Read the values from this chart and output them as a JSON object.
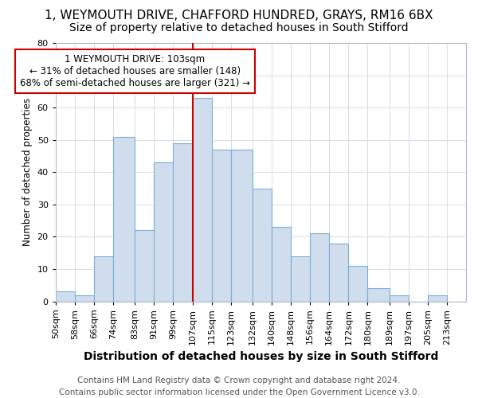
{
  "title_line1": "1, WEYMOUTH DRIVE, CHAFFORD HUNDRED, GRAYS, RM16 6BX",
  "title_line2": "Size of property relative to detached houses in South Stifford",
  "xlabel": "Distribution of detached houses by size in South Stifford",
  "ylabel": "Number of detached properties",
  "footer_line1": "Contains HM Land Registry data © Crown copyright and database right 2024.",
  "footer_line2": "Contains public sector information licensed under the Open Government Licence v3.0.",
  "bin_labels": [
    "50sqm",
    "58sqm",
    "66sqm",
    "74sqm",
    "83sqm",
    "91sqm",
    "99sqm",
    "107sqm",
    "115sqm",
    "123sqm",
    "132sqm",
    "140sqm",
    "148sqm",
    "156sqm",
    "164sqm",
    "172sqm",
    "180sqm",
    "189sqm",
    "197sqm",
    "205sqm",
    "213sqm"
  ],
  "bar_heights": [
    3,
    2,
    14,
    51,
    22,
    43,
    49,
    63,
    47,
    47,
    35,
    23,
    14,
    21,
    18,
    11,
    4,
    2,
    0,
    2,
    0
  ],
  "bar_color": "#cfdded",
  "bar_edge_color": "#7aaed6",
  "bin_edges": [
    50,
    58,
    66,
    74,
    83,
    91,
    99,
    107,
    115,
    123,
    132,
    140,
    148,
    156,
    164,
    172,
    180,
    189,
    197,
    205,
    213,
    221
  ],
  "highlight_label": "1 WEYMOUTH DRIVE: 103sqm",
  "annotation_line1": "← 31% of detached houses are smaller (148)",
  "annotation_line2": "68% of semi-detached houses are larger (321) →",
  "ylim": [
    0,
    80
  ],
  "yticks": [
    0,
    10,
    20,
    30,
    40,
    50,
    60,
    70,
    80
  ],
  "grid_color": "#d5dce8",
  "red_line_color": "#cc0000",
  "annotation_box_color": "#ffffff",
  "annotation_box_edge": "#cc0000",
  "title1_fontsize": 11,
  "title2_fontsize": 10,
  "ylabel_fontsize": 8.5,
  "xlabel_fontsize": 10,
  "tick_fontsize": 8,
  "annotation_fontsize": 8.5,
  "footer_fontsize": 7.5
}
